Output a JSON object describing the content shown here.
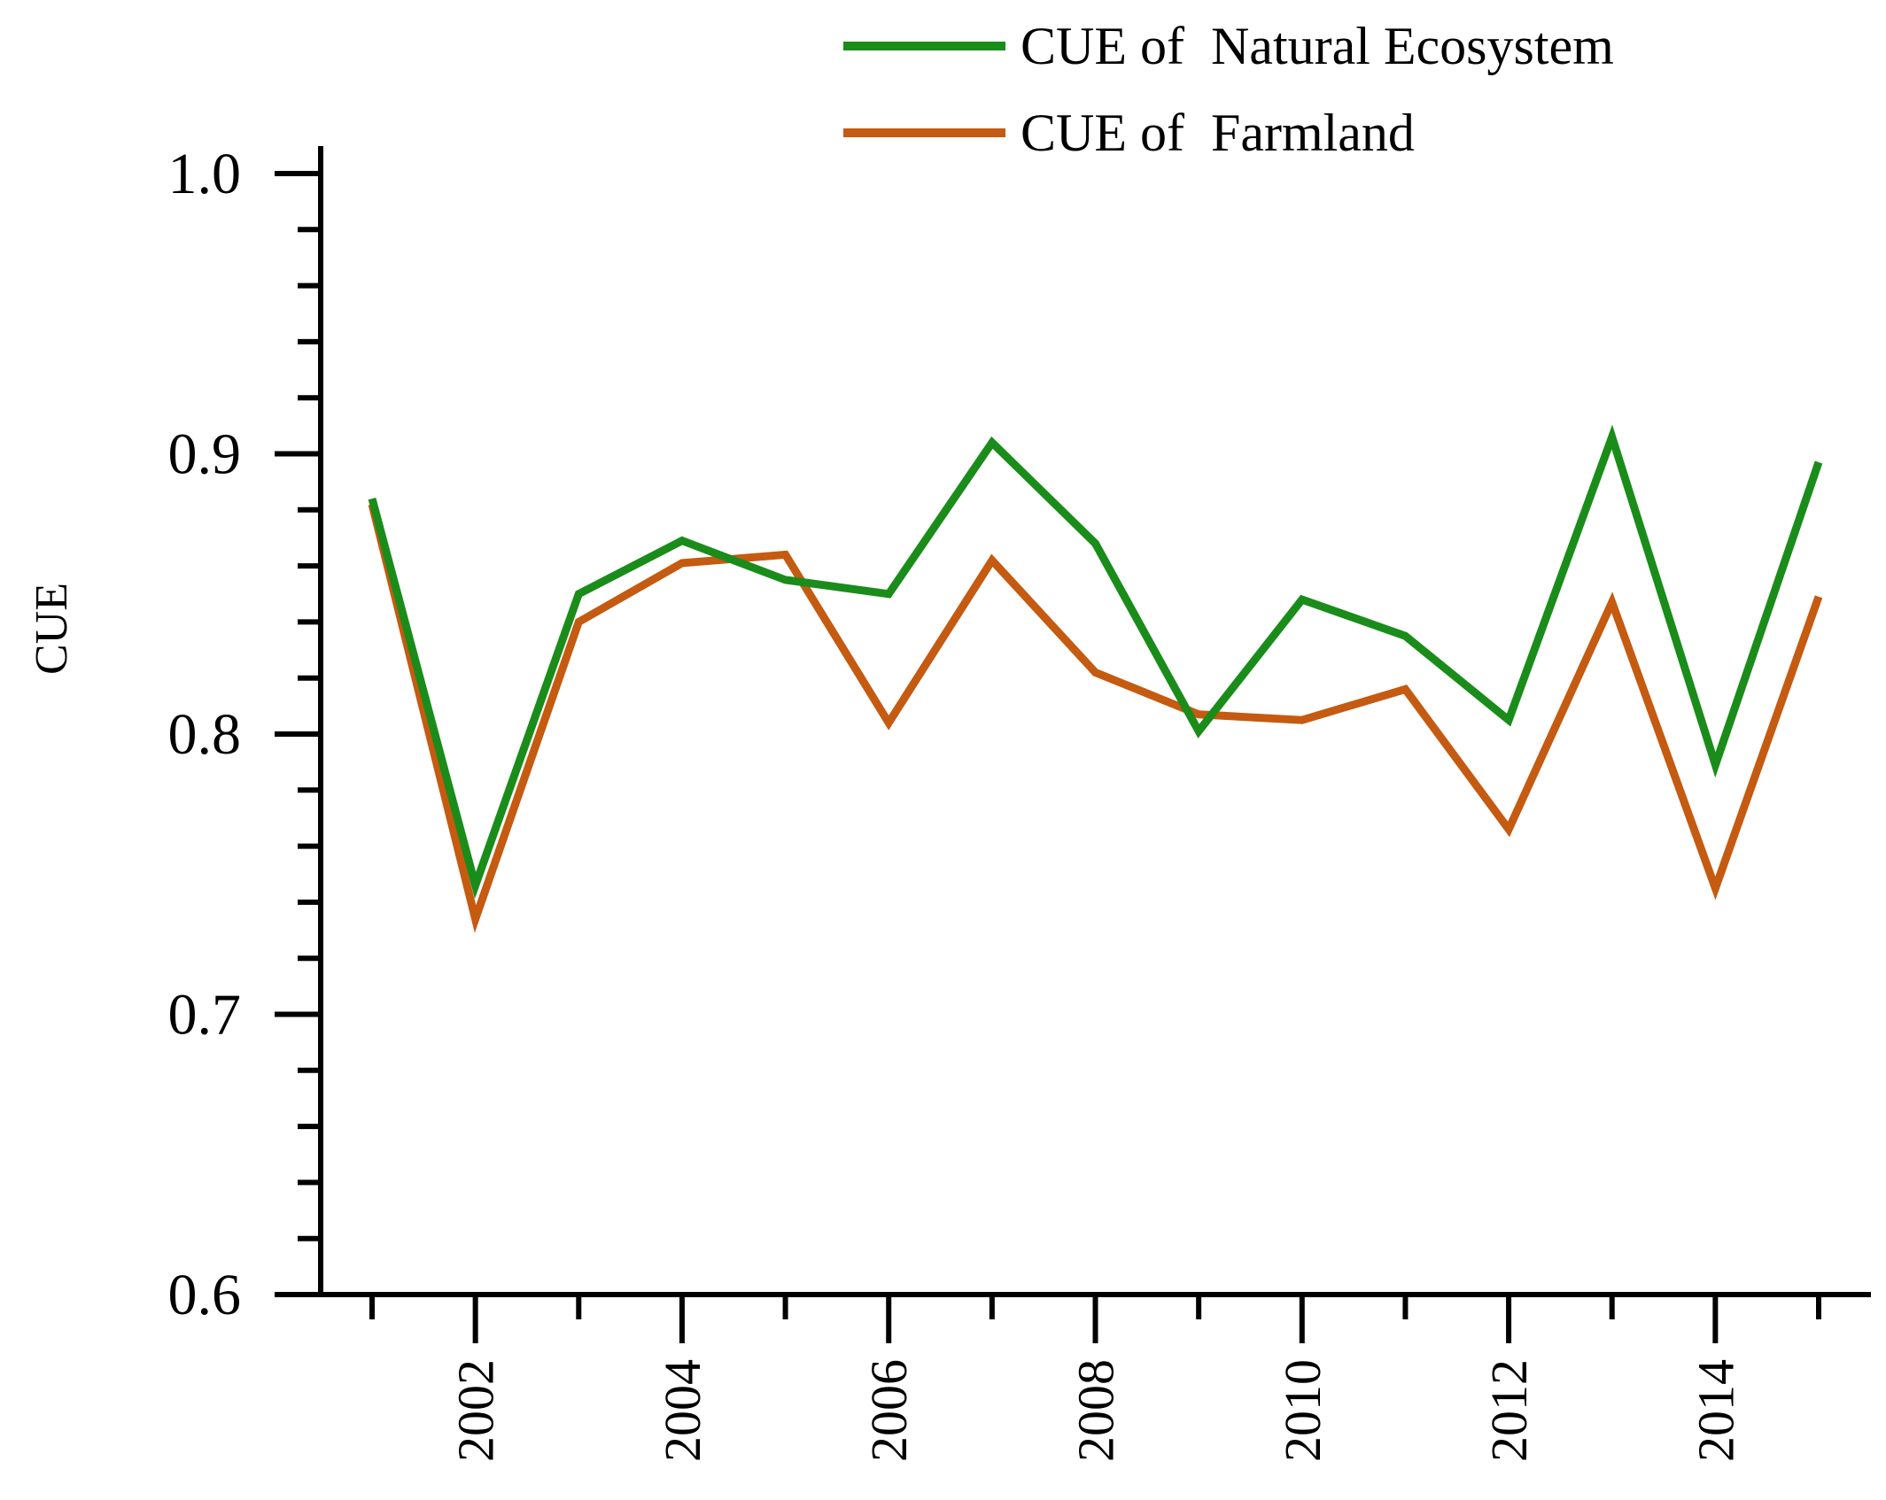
{
  "chart_data": {
    "type": "line",
    "title": "",
    "xlabel": "",
    "ylabel": "CUE",
    "ylim": [
      0.6,
      1.0
    ],
    "xlim": [
      2001,
      2015
    ],
    "x": [
      2001,
      2002,
      2003,
      2004,
      2005,
      2006,
      2007,
      2008,
      2009,
      2010,
      2011,
      2012,
      2013,
      2014,
      2015
    ],
    "x_tick_labels": [
      "2002",
      "2004",
      "2006",
      "2008",
      "2010",
      "2012",
      "2014"
    ],
    "y_tick_labels": [
      "0.6",
      "0.7",
      "0.8",
      "0.9",
      "1.0"
    ],
    "legend_position": "top-right",
    "grid": false,
    "series": [
      {
        "name": "CUE of  Natural Ecosystem",
        "color": "#1a8c1a",
        "values": [
          0.884,
          0.746,
          0.85,
          0.869,
          0.855,
          0.85,
          0.904,
          0.868,
          0.801,
          0.848,
          0.835,
          0.805,
          0.906,
          0.789,
          0.897
        ]
      },
      {
        "name": "CUE of  Farmland",
        "color": "#c55a11",
        "values": [
          0.882,
          0.734,
          0.84,
          0.861,
          0.864,
          0.804,
          0.862,
          0.822,
          0.807,
          0.805,
          0.816,
          0.766,
          0.847,
          0.745,
          0.849
        ]
      }
    ]
  }
}
